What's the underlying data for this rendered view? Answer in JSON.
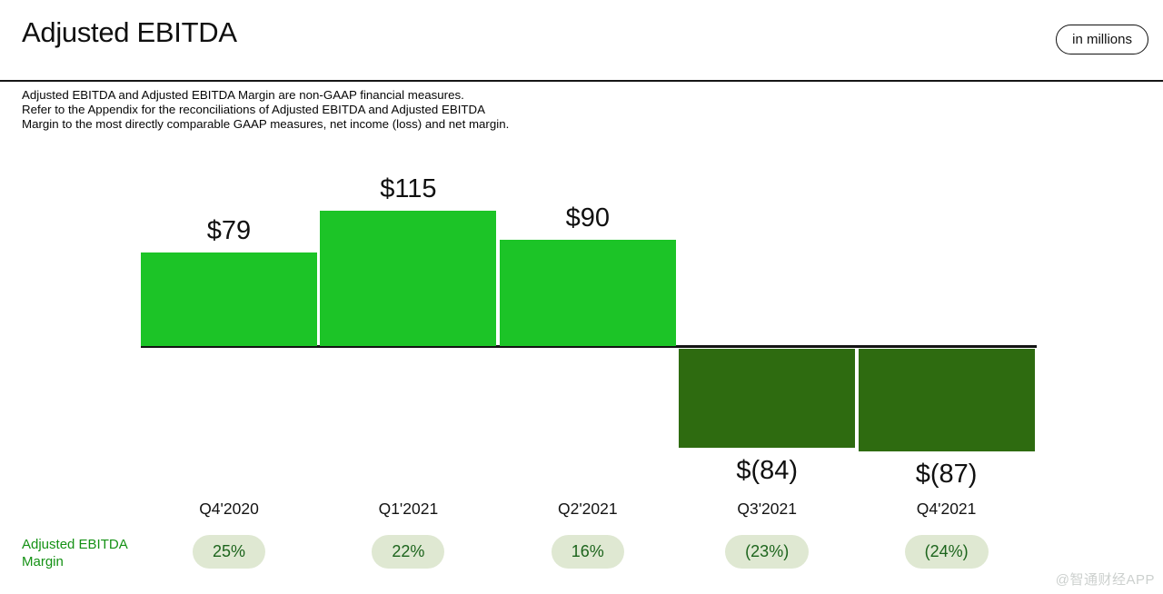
{
  "header": {
    "title": "Adjusted EBITDA",
    "units_badge": "in millions"
  },
  "footnote": "Adjusted EBITDA and Adjusted EBITDA Margin are non-GAAP financial measures.\nRefer to the Appendix for the reconciliations of Adjusted EBITDA and Adjusted EBITDA Margin to the most directly comparable GAAP measures, net income (loss) and net margin.",
  "margin_row": {
    "label": "Adjusted EBITDA Margin"
  },
  "watermark": "@智通财经APP",
  "chart_data": {
    "type": "bar",
    "title": "Adjusted EBITDA",
    "units_label": "in millions",
    "categories": [
      "Q4'2020",
      "Q1'2021",
      "Q2'2021",
      "Q3'2021",
      "Q4'2021"
    ],
    "values": [
      79,
      115,
      90,
      -84,
      -87
    ],
    "value_labels": [
      "$79",
      "$115",
      "$90",
      "$(84)",
      "$(87)"
    ],
    "series_name": "Adjusted EBITDA ($ millions)",
    "margin_series": {
      "name": "Adjusted EBITDA Margin",
      "values_pct": [
        25,
        22,
        16,
        -23,
        -24
      ],
      "labels": [
        "25%",
        "22%",
        "16%",
        "(23%)",
        "(24%)"
      ]
    },
    "ylim": [
      -120,
      140
    ],
    "baseline": 0,
    "grid": false,
    "legend": false,
    "colors": {
      "positive_bar": "#1CC427",
      "negative_bar": "#2E6B10",
      "axis_line": "#131313",
      "pill_bg": "#DFE8D2",
      "pill_text": "#1C641C",
      "margin_label_text": "#149114",
      "watermark": "#CCD0CE"
    }
  }
}
